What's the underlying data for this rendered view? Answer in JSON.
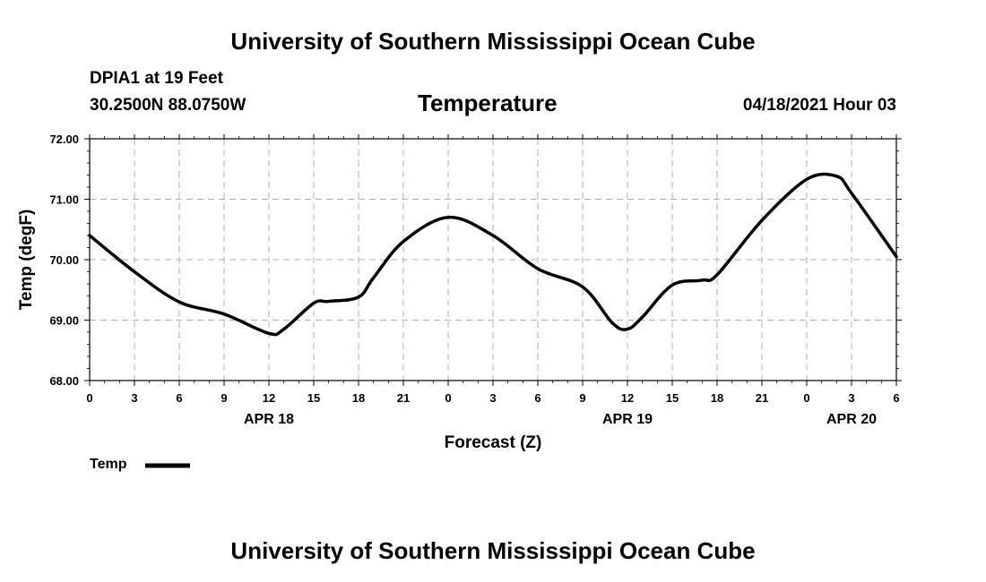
{
  "header": {
    "top_title": "University of Southern Mississippi Ocean Cube",
    "station": "DPIA1 at 19 Feet",
    "coords": "30.2500N  88.0750W",
    "datetime": "04/18/2021 Hour 03",
    "bottom_title": "University of Southern Mississippi Ocean Cube"
  },
  "chart_data": {
    "type": "line",
    "title": "Temperature",
    "xlabel": "Forecast (Z)",
    "ylabel": "Temp (degF)",
    "ylim": [
      68.0,
      72.0
    ],
    "xlim": [
      0,
      54
    ],
    "y_ticks": [
      "68.00",
      "69.00",
      "70.00",
      "71.00",
      "72.00"
    ],
    "x_tick_labels": [
      "0",
      "3",
      "6",
      "9",
      "12",
      "15",
      "18",
      "21",
      "0",
      "3",
      "6",
      "9",
      "12",
      "15",
      "18",
      "21",
      "0",
      "3",
      "6"
    ],
    "day_labels": [
      {
        "label": "APR 18",
        "hour": 12
      },
      {
        "label": "APR 19",
        "hour": 36
      },
      {
        "label": "APR 20",
        "hour": 51
      }
    ],
    "grid": true,
    "legend": {
      "label": "Temp",
      "position": "bottom-left"
    },
    "series": [
      {
        "name": "Temp",
        "color": "#000000",
        "x": [
          0,
          3,
          6,
          9,
          12,
          13,
          15,
          16,
          18,
          19,
          21,
          24,
          27,
          30,
          33,
          35,
          36,
          37,
          39,
          41,
          42,
          45,
          48,
          50,
          51,
          54
        ],
        "values": [
          70.4,
          69.8,
          69.3,
          69.1,
          68.78,
          68.85,
          69.28,
          69.31,
          69.38,
          69.7,
          70.3,
          70.7,
          70.4,
          69.85,
          69.55,
          68.95,
          68.85,
          69.05,
          69.58,
          69.66,
          69.75,
          70.65,
          71.33,
          71.38,
          71.1,
          70.05
        ]
      }
    ]
  }
}
